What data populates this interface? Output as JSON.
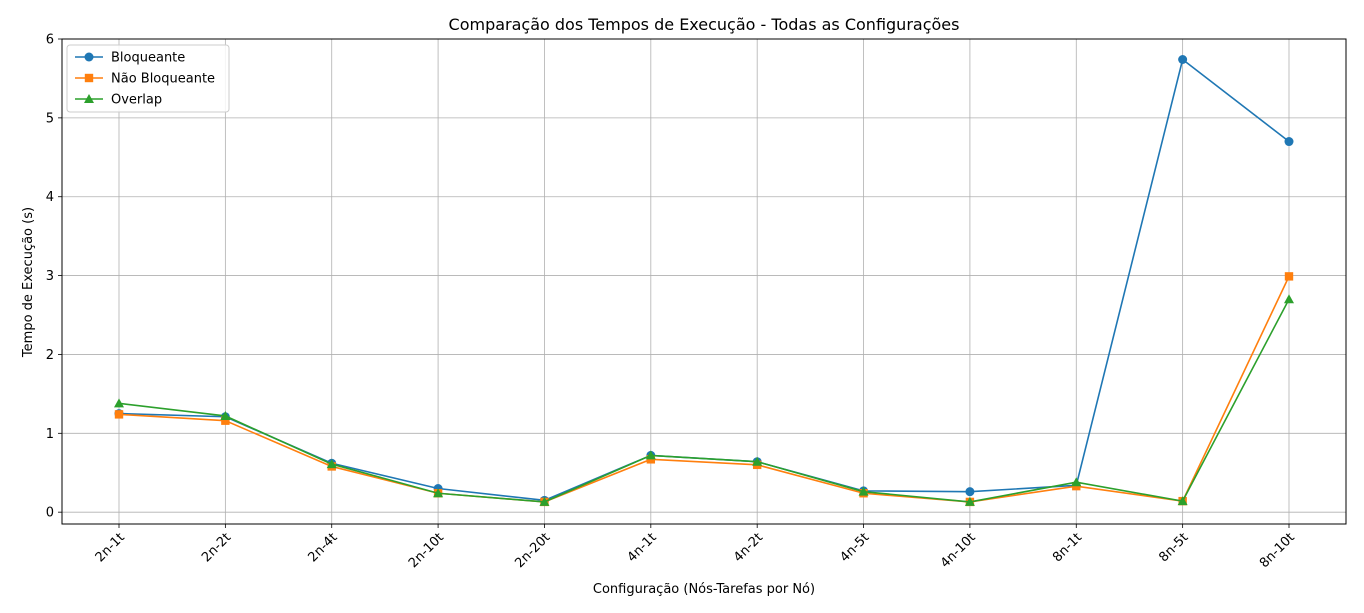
{
  "chart_data": {
    "type": "line",
    "title": "Comparação dos Tempos de Execução - Todas as Configurações",
    "xlabel": "Configuração (Nós-Tarefas por Nó)",
    "ylabel": "Tempo de Execução (s)",
    "categories": [
      "2n-1t",
      "2n-2t",
      "2n-4t",
      "2n-10t",
      "2n-20t",
      "4n-1t",
      "4n-2t",
      "4n-5t",
      "4n-10t",
      "8n-1t",
      "8n-5t",
      "8n-10t"
    ],
    "ylim": [
      -0.15,
      6.0
    ],
    "yticks": [
      "0",
      "1",
      "2",
      "3",
      "4",
      "5",
      "6"
    ],
    "grid": true,
    "legend_position": "top-left",
    "series": [
      {
        "name": "Bloqueante",
        "color": "#1f77b4",
        "marker": "circle",
        "values": [
          1.25,
          1.21,
          0.62,
          0.3,
          0.15,
          0.72,
          0.64,
          0.27,
          0.26,
          0.34,
          5.74,
          4.7
        ]
      },
      {
        "name": "Não Bloqueante",
        "color": "#ff7f0e",
        "marker": "square",
        "values": [
          1.24,
          1.16,
          0.58,
          0.24,
          0.13,
          0.67,
          0.6,
          0.24,
          0.13,
          0.33,
          0.14,
          2.99
        ]
      },
      {
        "name": "Overlap",
        "color": "#2ca02c",
        "marker": "triangle",
        "values": [
          1.38,
          1.22,
          0.61,
          0.24,
          0.13,
          0.72,
          0.64,
          0.26,
          0.13,
          0.38,
          0.14,
          2.7
        ]
      }
    ]
  }
}
